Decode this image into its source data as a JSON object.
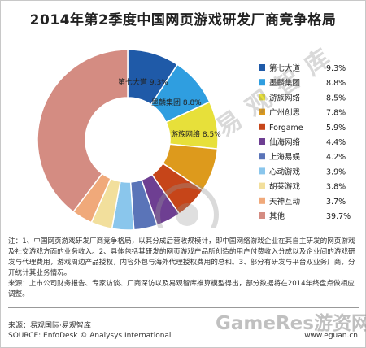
{
  "title": "2014年第2季度中国网页游戏研发厂商竞争格局",
  "chart_data": {
    "type": "donut",
    "series": [
      {
        "name": "第七大道",
        "value": 9.3,
        "color": "#1f5aa8"
      },
      {
        "name": "墨麟集团",
        "value": 8.8,
        "color": "#2f9ee0"
      },
      {
        "name": "游族网络",
        "value": 8.5,
        "color": "#e7e03a"
      },
      {
        "name": "广州创思",
        "value": 7.8,
        "color": "#dd9a1c"
      },
      {
        "name": "Forgame",
        "value": 5.9,
        "color": "#c64519"
      },
      {
        "name": "仙海网络",
        "value": 4.4,
        "color": "#6e3f92"
      },
      {
        "name": "上海易娱",
        "value": 4.2,
        "color": "#5a74b8"
      },
      {
        "name": "心动游戏",
        "value": 3.9,
        "color": "#8ac6ec"
      },
      {
        "name": "胡莱游戏",
        "value": 3.8,
        "color": "#f2df9c"
      },
      {
        "name": "天神互动",
        "value": 3.7,
        "color": "#f0a97a"
      },
      {
        "name": "其他",
        "value": 39.7,
        "color": "#d48c82"
      }
    ],
    "unit": "%",
    "value_labels": [
      "9.3%",
      "8.8%",
      "8.5%",
      "7.8%",
      "5.9%",
      "4.4%",
      "4.2%",
      "3.9%",
      "3.8%",
      "3.7%",
      "39.7%"
    ],
    "slice_callouts": [
      {
        "name": "第七大道",
        "value": "9.3%"
      },
      {
        "name": "墨麟集团",
        "value": "8.8%"
      },
      {
        "name": "游族网络",
        "value": "8.5%"
      }
    ],
    "legend_position": "right"
  },
  "notes": [
    "注：1、中国网页游戏研发厂商竞争格局，以其分成后营收规模计，即中国网络游戏企业在其自主研发的网页游戏及社交游戏方面的业务收入。2、具体包括其研发的网页游戏产品所创造的用户付费收入分成以及企业间的游戏研发与代理费用，游戏周边产品授权，内容外包与海外代理授权费用的总和。3、部分有研发与平台双业务厂商，分开统计其业务情况。",
    "来源：上市公司财务报告、专家访谈、厂商深访以及易观智库推算模型得出，部分数据将在2014年终盘点做相应调整。"
  ],
  "source_cn": "来源：易观国际·易观智库",
  "source_en": "SOURCE: EnfoDesk © Analysys International",
  "site": "www.eguan.cn",
  "watermark_cn": "易观智库",
  "watermark_en": "GameRes游资网"
}
